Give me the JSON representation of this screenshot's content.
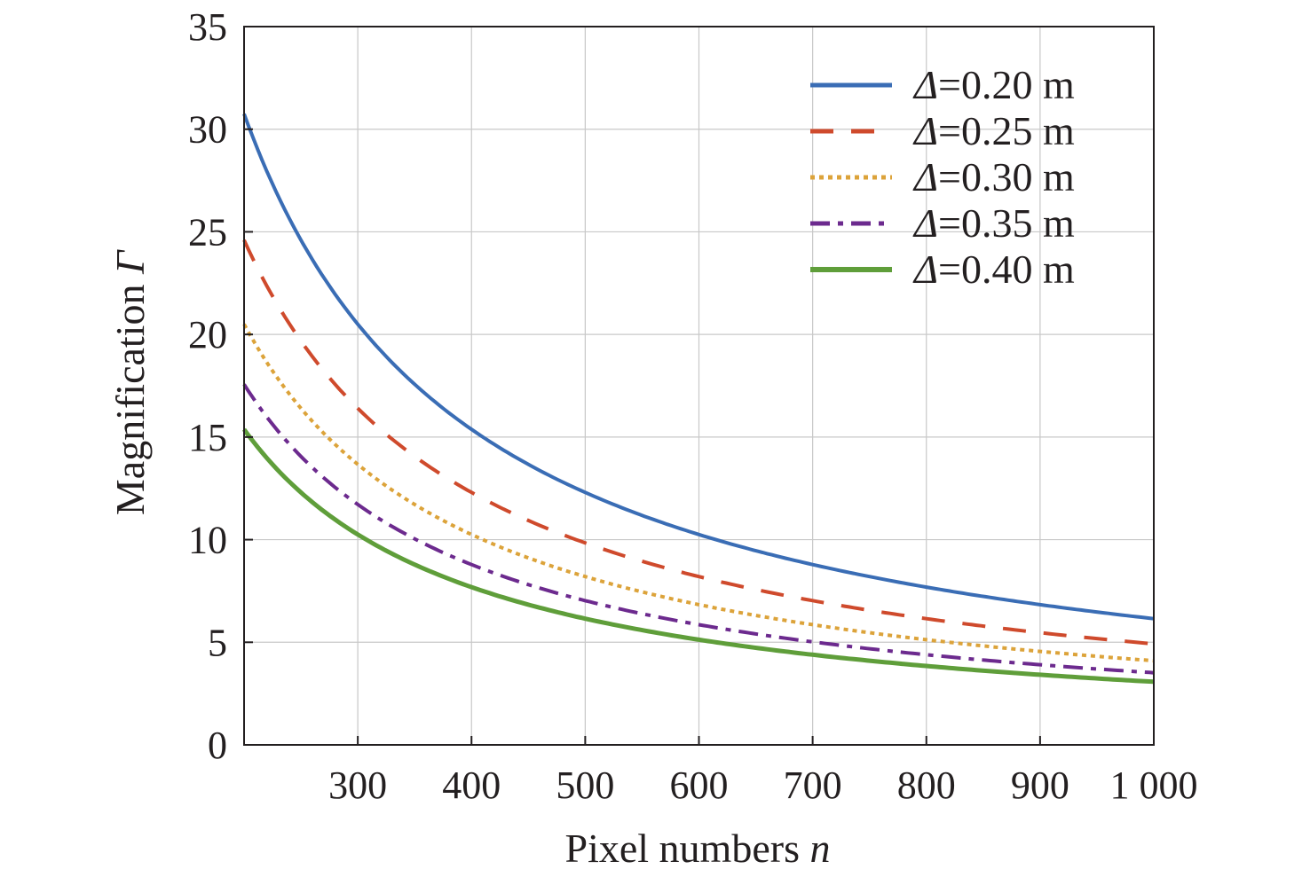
{
  "chart_data": {
    "type": "line",
    "xlabel": {
      "text": "Pixel numbers ",
      "var": "n"
    },
    "ylabel": {
      "text": "Magnification ",
      "var": "Γ"
    },
    "xlim": [
      200,
      1000
    ],
    "ylim": [
      0,
      35
    ],
    "xticks": [
      300,
      400,
      500,
      600,
      700,
      800,
      900,
      1000
    ],
    "xtick_labels": [
      "300",
      "400",
      "500",
      "600",
      "700",
      "800",
      "900",
      "1 000"
    ],
    "yticks": [
      0,
      5,
      10,
      15,
      20,
      25,
      30,
      35
    ],
    "ytick_labels": [
      "0",
      "5",
      "10",
      "15",
      "20",
      "25",
      "30",
      "35"
    ],
    "grid": true,
    "legend_position": "top-right",
    "series": [
      {
        "name": "Δ=0.20 m",
        "sym": "Δ",
        "rest": "=0.20 m",
        "color": "#3a6db5",
        "style": "solid",
        "k": 6150
      },
      {
        "name": "Δ=0.25 m",
        "sym": "Δ",
        "rest": "=0.25 m",
        "color": "#cf4a2c",
        "style": "dashed",
        "k": 4920
      },
      {
        "name": "Δ=0.30 m",
        "sym": "Δ",
        "rest": "=0.30 m",
        "color": "#dca33a",
        "style": "dotted",
        "k": 4100
      },
      {
        "name": "Δ=0.35 m",
        "sym": "Δ",
        "rest": "=0.35 m",
        "color": "#6c2a8e",
        "style": "dashdot",
        "k": 3514
      },
      {
        "name": "Δ=0.40 m",
        "sym": "Δ",
        "rest": "=0.40 m",
        "color": "#5f9e3a",
        "style": "solid",
        "k": 3075
      }
    ],
    "x": [
      200,
      225,
      250,
      275,
      300,
      325,
      350,
      375,
      400,
      450,
      500,
      550,
      600,
      650,
      700,
      750,
      800,
      850,
      900,
      950,
      1000
    ]
  }
}
